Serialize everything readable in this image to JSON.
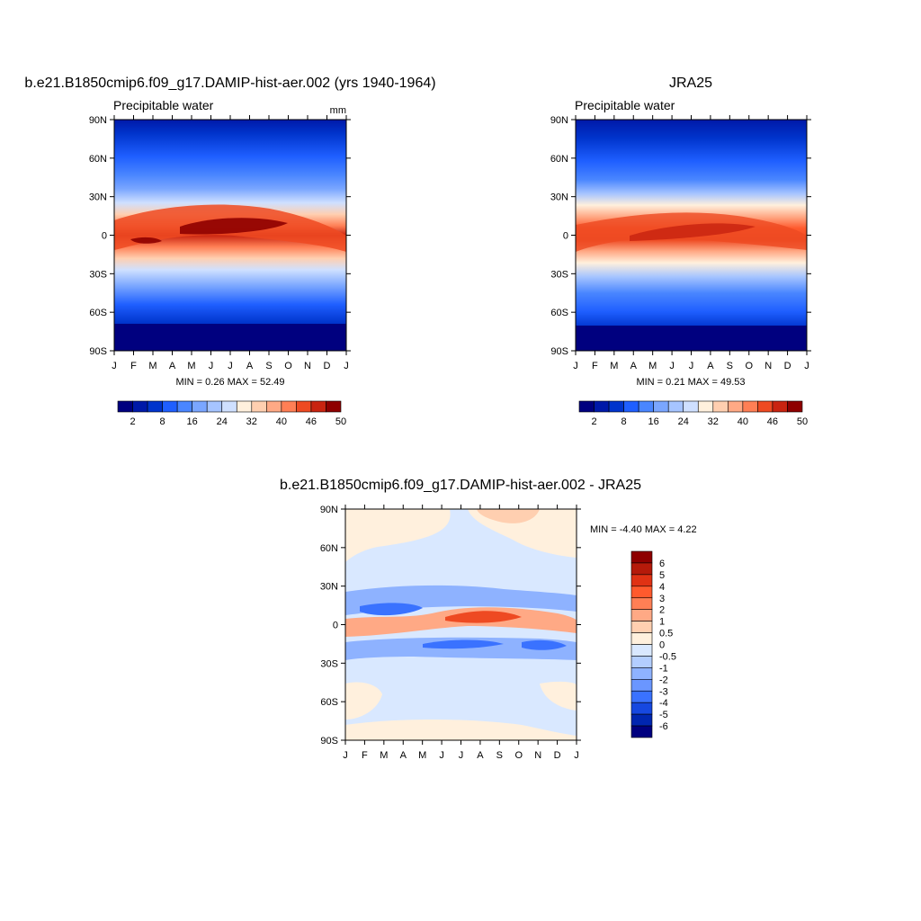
{
  "chart_data": [
    {
      "type": "heatmap",
      "title": "b.e21.B1850cmip6.f09_g17.DAMIP-hist-aer.002 (yrs 1940-1964)",
      "subtitle_left": "Precipitable water",
      "subtitle_right": "mm",
      "x_ticks": [
        "J",
        "F",
        "M",
        "A",
        "M",
        "J",
        "J",
        "A",
        "S",
        "O",
        "N",
        "D",
        "J"
      ],
      "y_ticks": [
        "90N",
        "60N",
        "30N",
        "0",
        "30S",
        "60S",
        "90S"
      ],
      "stats": "MIN =   0.26 MAX =  52.49",
      "min": 0.26,
      "max": 52.49,
      "colorbar_labels": [
        "2",
        "8",
        "16",
        "24",
        "32",
        "40",
        "46",
        "50"
      ],
      "colorbar_levels": [
        2,
        4,
        8,
        12,
        16,
        20,
        24,
        28,
        32,
        36,
        40,
        44,
        46,
        48,
        50
      ],
      "colors": [
        "#00007f",
        "#0019a8",
        "#0034cc",
        "#1f5fff",
        "#4a86ff",
        "#7aa6ff",
        "#a6c4ff",
        "#cfe0ff",
        "#fff0dd",
        "#ffcfb0",
        "#ffa985",
        "#ff7f55",
        "#ee4a22",
        "#c92410",
        "#8e0000"
      ],
      "legend_position": "bottom"
    },
    {
      "type": "heatmap",
      "title": "JRA25",
      "subtitle_left": "Precipitable water",
      "x_ticks": [
        "J",
        "F",
        "M",
        "A",
        "M",
        "J",
        "J",
        "A",
        "S",
        "O",
        "N",
        "D",
        "J"
      ],
      "y_ticks": [
        "90N",
        "60N",
        "30N",
        "0",
        "30S",
        "60S",
        "90S"
      ],
      "stats": "MIN =   0.21 MAX =  49.53",
      "min": 0.21,
      "max": 49.53,
      "colorbar_labels": [
        "2",
        "8",
        "16",
        "24",
        "32",
        "40",
        "46",
        "50"
      ],
      "legend_position": "bottom"
    },
    {
      "type": "heatmap",
      "title": "b.e21.B1850cmip6.f09_g17.DAMIP-hist-aer.002 - JRA25",
      "x_ticks": [
        "J",
        "F",
        "M",
        "A",
        "M",
        "J",
        "J",
        "A",
        "S",
        "O",
        "N",
        "D",
        "J"
      ],
      "y_ticks": [
        "90N",
        "60N",
        "30N",
        "0",
        "30S",
        "60S",
        "90S"
      ],
      "stats": "MIN =  -4.40 MAX =   4.22",
      "min": -4.4,
      "max": 4.22,
      "colorbar_labels": [
        "6",
        "5",
        "4",
        "3",
        "2",
        "1",
        "0.5",
        "0",
        "-0.5",
        "-1",
        "-2",
        "-3",
        "-4",
        "-5",
        "-6"
      ],
      "colors": [
        "#8e0000",
        "#b51a0a",
        "#e03214",
        "#ff5a2d",
        "#ff7f55",
        "#ffa985",
        "#ffcfb0",
        "#fff0dd",
        "#d9e8ff",
        "#b3ceff",
        "#8eb2ff",
        "#6a96ff",
        "#3a72ff",
        "#1648e0",
        "#0026b0",
        "#00007f"
      ],
      "legend_position": "right"
    }
  ]
}
